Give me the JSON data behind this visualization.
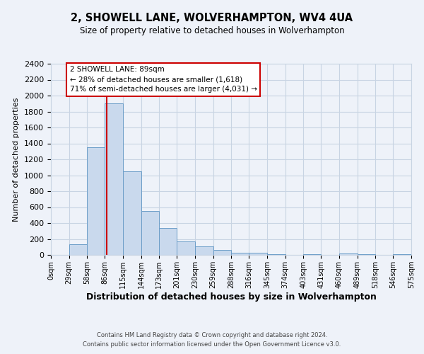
{
  "title": "2, SHOWELL LANE, WOLVERHAMPTON, WV4 4UA",
  "subtitle": "Size of property relative to detached houses in Wolverhampton",
  "xlabel": "Distribution of detached houses by size in Wolverhampton",
  "ylabel": "Number of detached properties",
  "footer_lines": [
    "Contains HM Land Registry data © Crown copyright and database right 2024.",
    "Contains public sector information licensed under the Open Government Licence v3.0."
  ],
  "bin_edges": [
    0,
    29,
    58,
    86,
    115,
    144,
    173,
    201,
    230,
    259,
    288,
    316,
    345,
    374,
    403,
    431,
    460,
    489,
    518,
    546,
    575
  ],
  "bin_labels": [
    "0sqm",
    "29sqm",
    "58sqm",
    "86sqm",
    "115sqm",
    "144sqm",
    "173sqm",
    "201sqm",
    "230sqm",
    "259sqm",
    "288sqm",
    "316sqm",
    "345sqm",
    "374sqm",
    "403sqm",
    "431sqm",
    "460sqm",
    "489sqm",
    "518sqm",
    "546sqm",
    "575sqm"
  ],
  "counts": [
    0,
    130,
    1350,
    1900,
    1050,
    550,
    340,
    165,
    110,
    60,
    30,
    25,
    10,
    0,
    5,
    0,
    20,
    5,
    0,
    10
  ],
  "bar_color": "#c9d9ed",
  "bar_edge_color": "#6b9dc8",
  "grid_color": "#c8d4e3",
  "background_color": "#eef2f9",
  "vline_x": 89,
  "vline_color": "#cc0000",
  "annotation_line1": "2 SHOWELL LANE: 89sqm",
  "annotation_line2": "← 28% of detached houses are smaller (1,618)",
  "annotation_line3": "71% of semi-detached houses are larger (4,031) →",
  "annotation_box_color": "#ffffff",
  "annotation_box_edge": "#cc0000",
  "ylim": [
    0,
    2400
  ],
  "yticks": [
    0,
    200,
    400,
    600,
    800,
    1000,
    1200,
    1400,
    1600,
    1800,
    2000,
    2200,
    2400
  ],
  "title_fontsize": 10.5,
  "subtitle_fontsize": 8.5,
  "xlabel_fontsize": 9,
  "ylabel_fontsize": 8,
  "footer_fontsize": 6
}
